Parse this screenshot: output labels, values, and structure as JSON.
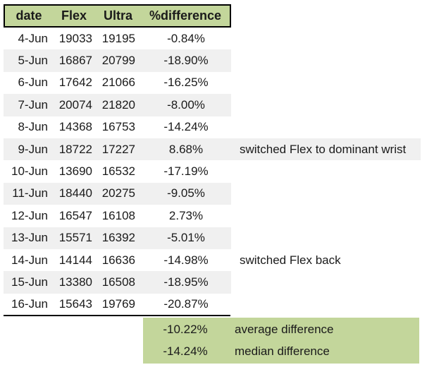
{
  "table": {
    "headers": [
      "date",
      "Flex",
      "Ultra",
      "%difference"
    ],
    "rows": [
      {
        "date": "4-Jun",
        "flex": "19033",
        "ultra": "19195",
        "diff": "-0.84%",
        "note": ""
      },
      {
        "date": "5-Jun",
        "flex": "16867",
        "ultra": "20799",
        "diff": "-18.90%",
        "note": ""
      },
      {
        "date": "6-Jun",
        "flex": "17642",
        "ultra": "21066",
        "diff": "-16.25%",
        "note": ""
      },
      {
        "date": "7-Jun",
        "flex": "20074",
        "ultra": "21820",
        "diff": "-8.00%",
        "note": ""
      },
      {
        "date": "8-Jun",
        "flex": "14368",
        "ultra": "16753",
        "diff": "-14.24%",
        "note": ""
      },
      {
        "date": "9-Jun",
        "flex": "18722",
        "ultra": "17227",
        "diff": "8.68%",
        "note": "switched Flex to dominant wrist"
      },
      {
        "date": "10-Jun",
        "flex": "13690",
        "ultra": "16532",
        "diff": "-17.19%",
        "note": ""
      },
      {
        "date": "11-Jun",
        "flex": "18440",
        "ultra": "20275",
        "diff": "-9.05%",
        "note": ""
      },
      {
        "date": "12-Jun",
        "flex": "16547",
        "ultra": "16108",
        "diff": "2.73%",
        "note": ""
      },
      {
        "date": "13-Jun",
        "flex": "15571",
        "ultra": "16392",
        "diff": "-5.01%",
        "note": ""
      },
      {
        "date": "14-Jun",
        "flex": "14144",
        "ultra": "16636",
        "diff": "-14.98%",
        "note": "switched Flex back"
      },
      {
        "date": "15-Jun",
        "flex": "13380",
        "ultra": "16508",
        "diff": "-18.95%",
        "note": ""
      },
      {
        "date": "16-Jun",
        "flex": "15643",
        "ultra": "19769",
        "diff": "-20.87%",
        "note": ""
      }
    ]
  },
  "summary": {
    "rows": [
      {
        "value": "-10.22%",
        "label": "average difference"
      },
      {
        "value": "-14.24%",
        "label": "median difference"
      }
    ]
  },
  "colors": {
    "header_green": "#c3d69b",
    "stripe_gray": "#f0f0f0",
    "border_black": "#000000",
    "text": "#1a1a1a"
  }
}
